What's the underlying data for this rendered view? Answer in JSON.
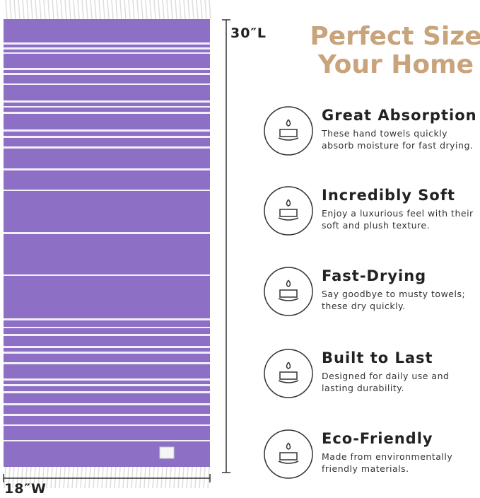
{
  "dimensions": {
    "length": "30″L",
    "width": "18″W"
  },
  "header": {
    "title_line1": "Perfect Size",
    "title_line2": "Your Home"
  },
  "features": [
    {
      "title": "Great Absorption",
      "description": "These hand towels quickly absorb moisture for fast drying."
    },
    {
      "title": "Incredibly Soft",
      "description": "Enjoy a luxurious feel with their soft and plush texture."
    },
    {
      "title": "Fast-Drying",
      "description": "Say goodbye to musty towels; these dry quickly."
    },
    {
      "title": "Built to Last",
      "description": "Designed for daily use and lasting durability."
    },
    {
      "title": "Eco-Friendly",
      "description": "Made from environmentally friendly  materials."
    }
  ]
}
